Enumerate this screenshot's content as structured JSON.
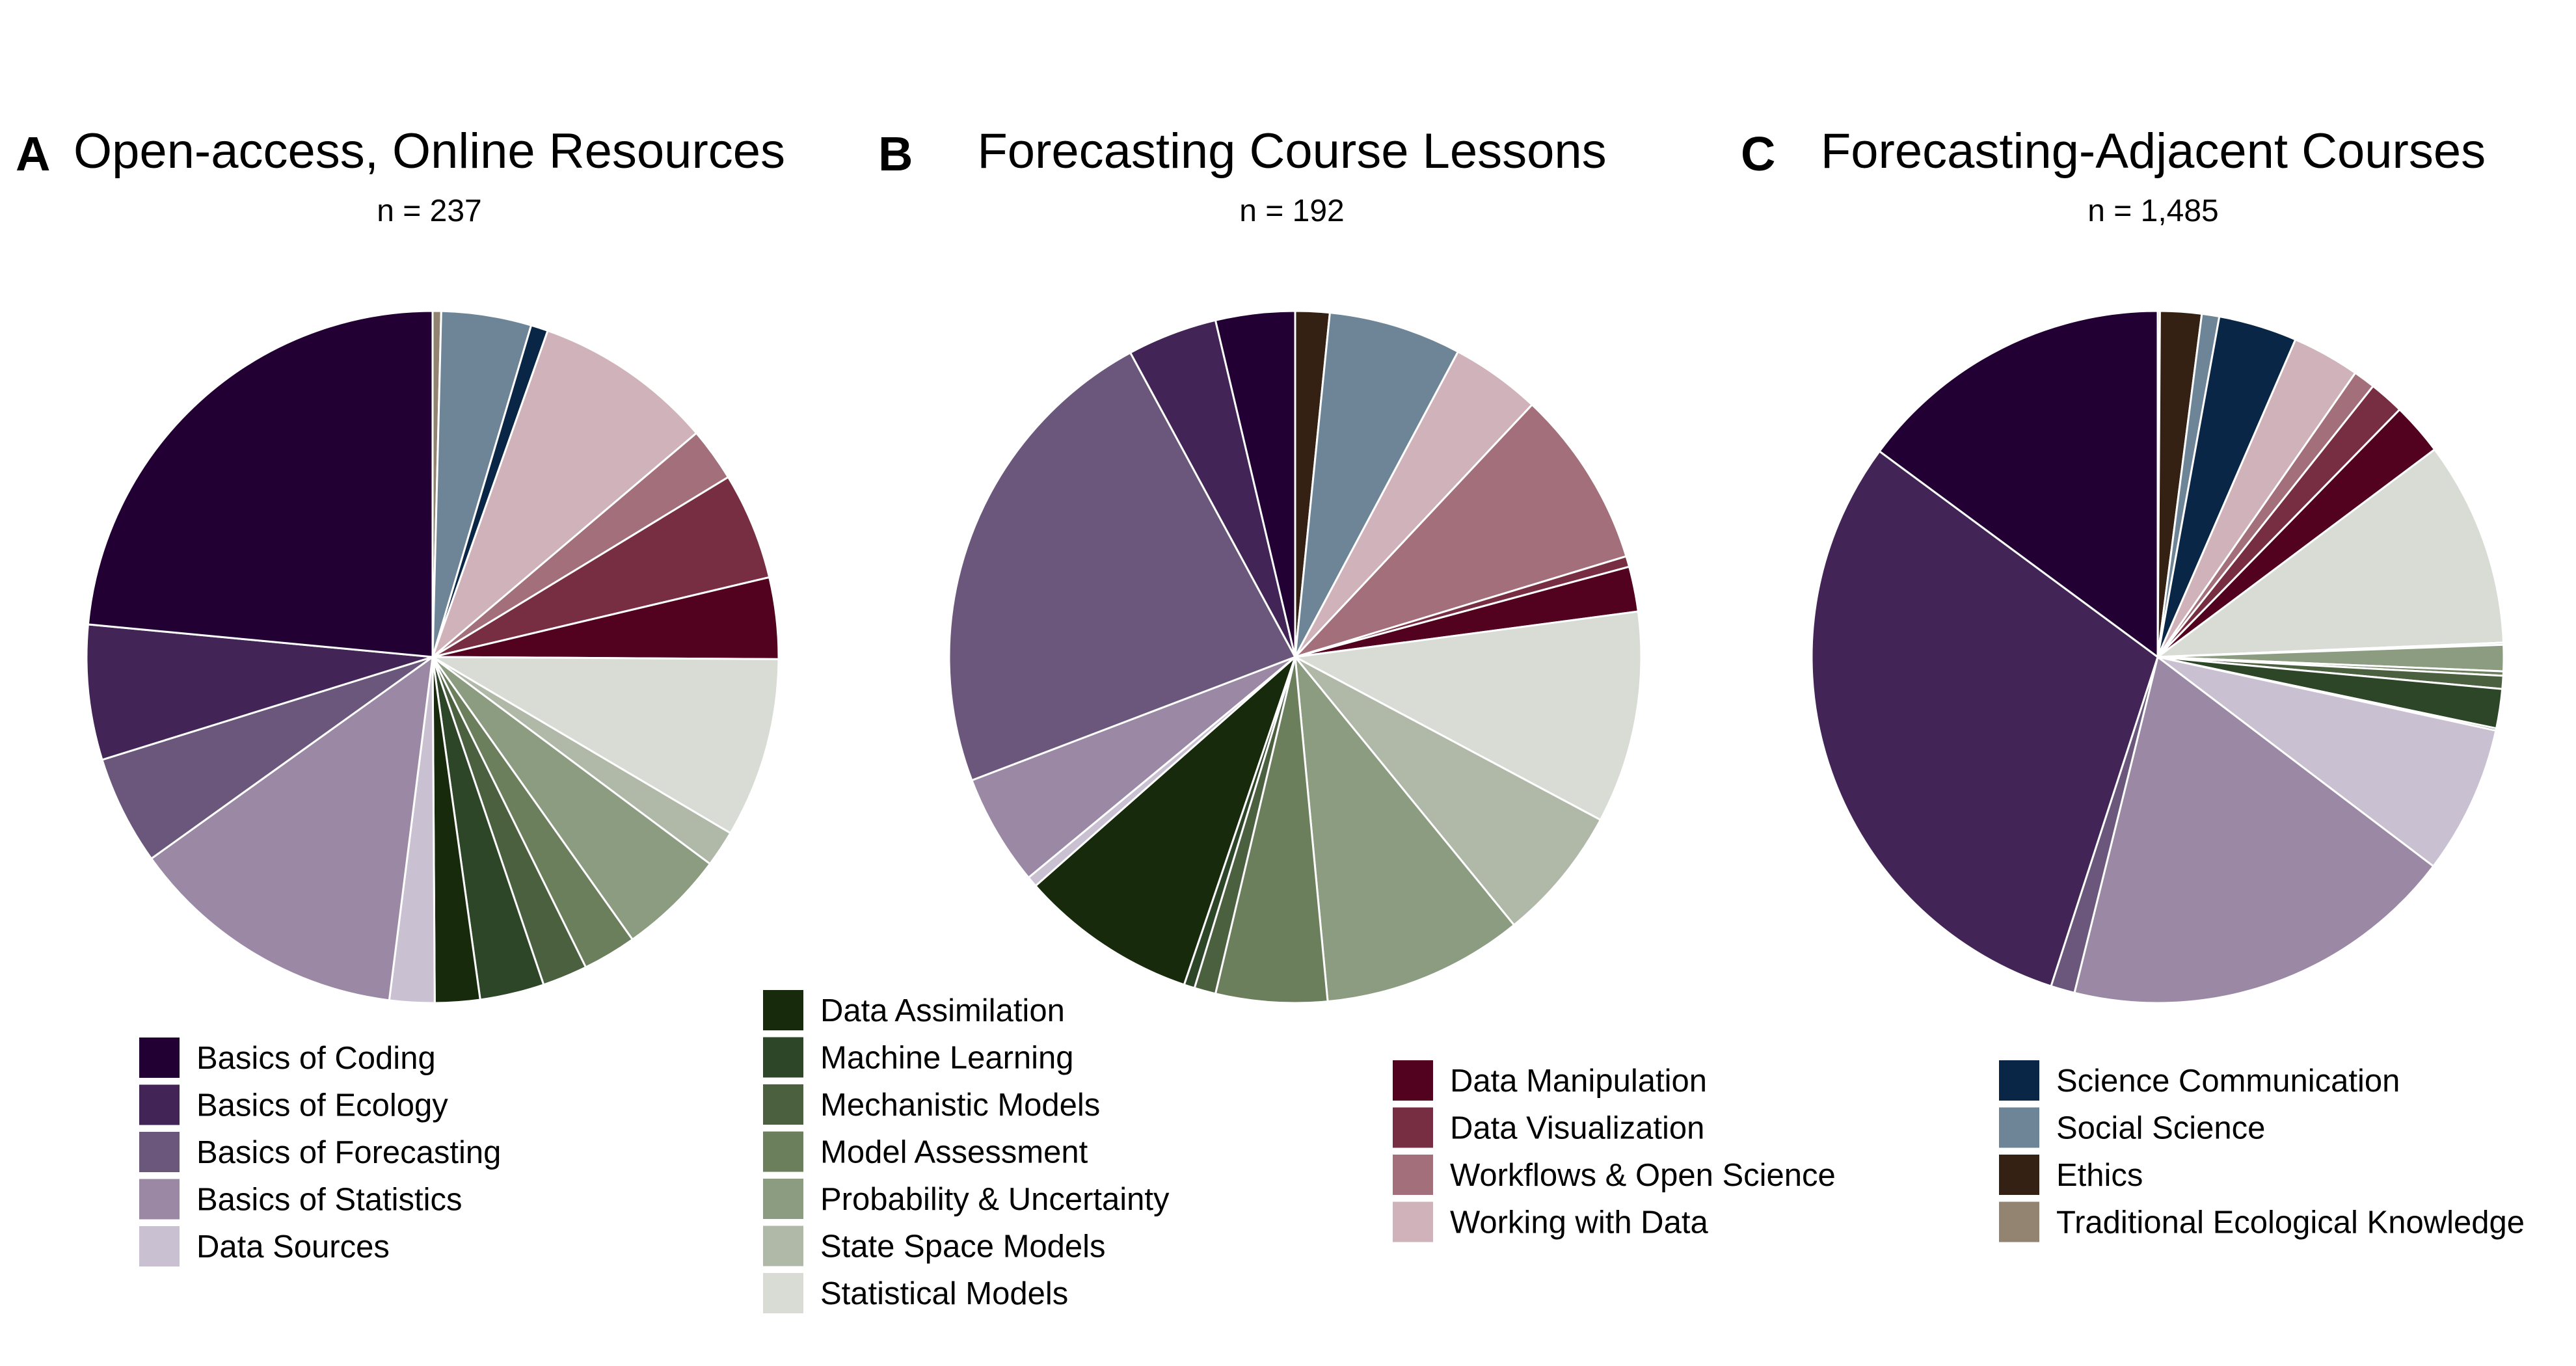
{
  "colors": {
    "Basics of Coding": "#220033",
    "Basics of Ecology": "#432456",
    "Basics of Forecasting": "#6c577c",
    "Basics of Statistics": "#9a88a4",
    "Data Sources": "#c9c0d2",
    "Data Assimilation": "#172a0c",
    "Machine Learning": "#2e4628",
    "Mechanistic Models": "#4a603f",
    "Model Assessment": "#6b7f5d",
    "Probability & Uncertainty": "#8c9c80",
    "State Space Models": "#b0b8a8",
    "Statistical Models": "#d8dcd5",
    "Data Manipulation": "#52011f",
    "Data Visualization": "#772e42",
    "Workflows & Open Science": "#a26f7a",
    "Working with Data": "#d0b3ba",
    "Science Communication": "#092647",
    "Social Science": "#6e8598",
    "Ethics": "#352014",
    "Traditional Ecological Knowledge": "#928470"
  },
  "chart_data": [
    {
      "type": "pie",
      "panel": "A",
      "title": "Open-access, Online Resources",
      "subtitle": "n = 237",
      "start": "12 o'clock",
      "direction": "clockwise",
      "slices": [
        {
          "label": "Traditional Ecological Knowledge",
          "value": 0.4
        },
        {
          "label": "Social Science",
          "value": 4.2
        },
        {
          "label": "Science Communication",
          "value": 0.8
        },
        {
          "label": "Working with Data",
          "value": 8.4
        },
        {
          "label": "Workflows & Open Science",
          "value": 2.5
        },
        {
          "label": "Data Visualization",
          "value": 5.0
        },
        {
          "label": "Data Manipulation",
          "value": 3.8
        },
        {
          "label": "Statistical Models",
          "value": 8.4
        },
        {
          "label": "State Space Models",
          "value": 1.7
        },
        {
          "label": "Probability & Uncertainty",
          "value": 5.0
        },
        {
          "label": "Model Assessment",
          "value": 2.5
        },
        {
          "label": "Mechanistic Models",
          "value": 2.1
        },
        {
          "label": "Machine Learning",
          "value": 3.0
        },
        {
          "label": "Data Assimilation",
          "value": 2.1
        },
        {
          "label": "Data Sources",
          "value": 2.1
        },
        {
          "label": "Basics of Statistics",
          "value": 13.1
        },
        {
          "label": "Basics of Forecasting",
          "value": 5.1
        },
        {
          "label": "Basics of Ecology",
          "value": 6.3
        },
        {
          "label": "Basics of Coding",
          "value": 23.5
        }
      ]
    },
    {
      "type": "pie",
      "panel": "B",
      "title": "Forecasting Course Lessons",
      "subtitle": "n = 192",
      "start": "12 o'clock",
      "direction": "clockwise",
      "slices": [
        {
          "label": "Ethics",
          "value": 1.6
        },
        {
          "label": "Social Science",
          "value": 6.2
        },
        {
          "label": "Working with Data",
          "value": 4.2
        },
        {
          "label": "Workflows & Open Science",
          "value": 8.3
        },
        {
          "label": "Data Visualization",
          "value": 0.5
        },
        {
          "label": "Data Manipulation",
          "value": 2.1
        },
        {
          "label": "Statistical Models",
          "value": 9.9
        },
        {
          "label": "State Space Models",
          "value": 6.3
        },
        {
          "label": "Probability & Uncertainty",
          "value": 9.4
        },
        {
          "label": "Model Assessment",
          "value": 5.2
        },
        {
          "label": "Mechanistic Models",
          "value": 1.0
        },
        {
          "label": "Machine Learning",
          "value": 0.5
        },
        {
          "label": "Data Assimilation",
          "value": 8.3
        },
        {
          "label": "Data Sources",
          "value": 0.5
        },
        {
          "label": "Basics of Statistics",
          "value": 5.2
        },
        {
          "label": "Basics of Forecasting",
          "value": 22.9
        },
        {
          "label": "Basics of Ecology",
          "value": 4.2
        },
        {
          "label": "Basics of Coding",
          "value": 3.7
        }
      ]
    },
    {
      "type": "pie",
      "panel": "C",
      "title": "Forecasting-Adjacent Courses",
      "subtitle": "n = 1,485",
      "start": "12 o'clock",
      "direction": "clockwise",
      "slices": [
        {
          "label": "Traditional Ecological Knowledge",
          "value": 0.1
        },
        {
          "label": "Ethics",
          "value": 1.9
        },
        {
          "label": "Social Science",
          "value": 0.8
        },
        {
          "label": "Science Communication",
          "value": 3.6
        },
        {
          "label": "Working with Data",
          "value": 3.1
        },
        {
          "label": "Workflows & Open Science",
          "value": 1.0
        },
        {
          "label": "Data Visualization",
          "value": 1.6
        },
        {
          "label": "Data Manipulation",
          "value": 2.4
        },
        {
          "label": "Statistical Models",
          "value": 9.4
        },
        {
          "label": "State Space Models",
          "value": 0.1
        },
        {
          "label": "Probability & Uncertainty",
          "value": 1.2
        },
        {
          "label": "Model Assessment",
          "value": 0.2
        },
        {
          "label": "Mechanistic Models",
          "value": 0.6
        },
        {
          "label": "Machine Learning",
          "value": 1.8
        },
        {
          "label": "Data Assimilation",
          "value": 0.1
        },
        {
          "label": "Data Sources",
          "value": 6.8
        },
        {
          "label": "Basics of Statistics",
          "value": 18.2
        },
        {
          "label": "Basics of Forecasting",
          "value": 1.1
        },
        {
          "label": "Basics of Ecology",
          "value": 29.6
        },
        {
          "label": "Basics of Coding",
          "value": 14.6
        }
      ]
    }
  ],
  "legend_groups": [
    [
      "Basics of Coding",
      "Basics of Ecology",
      "Basics of Forecasting",
      "Basics of Statistics",
      "Data Sources"
    ],
    [
      "Data Assimilation",
      "Machine Learning",
      "Mechanistic Models",
      "Model Assessment",
      "Probability & Uncertainty",
      "State Space Models",
      "Statistical Models"
    ],
    [
      "Data Manipulation",
      "Data Visualization",
      "Workflows & Open Science",
      "Working with Data"
    ],
    [
      "Science Communication",
      "Social Science",
      "Ethics",
      "Traditional Ecological Knowledge"
    ]
  ]
}
